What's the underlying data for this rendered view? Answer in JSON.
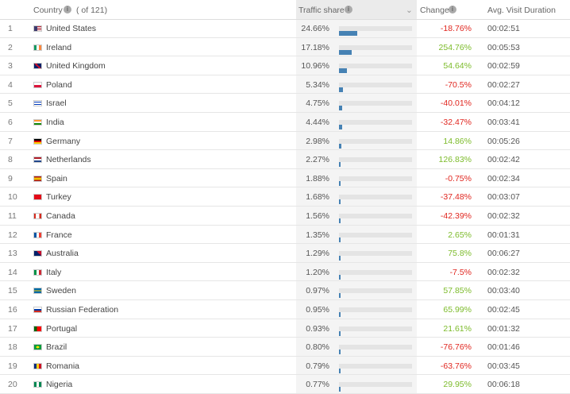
{
  "header": {
    "country": "Country",
    "country_count": "( of 121)",
    "traffic_share": "Traffic share",
    "change": "Change",
    "duration": "Avg. Visit Duration"
  },
  "table": {
    "rows": [
      {
        "rank": "1",
        "country": "United States",
        "traffic_share": {
          "value": 24.66,
          "label": "24.66%"
        },
        "change": "-18.76%",
        "duration": "00:02:51"
      },
      {
        "rank": "2",
        "country": "Ireland",
        "traffic_share": {
          "value": 17.18,
          "label": "17.18%"
        },
        "change": "254.76%",
        "duration": "00:05:53"
      },
      {
        "rank": "3",
        "country": "United Kingdom",
        "traffic_share": {
          "value": 10.96,
          "label": "10.96%"
        },
        "change": "54.64%",
        "duration": "00:02:59"
      },
      {
        "rank": "4",
        "country": "Poland",
        "traffic_share": {
          "value": 5.34,
          "label": "5.34%"
        },
        "change": "-70.5%",
        "duration": "00:02:27"
      },
      {
        "rank": "5",
        "country": "Israel",
        "traffic_share": {
          "value": 4.75,
          "label": "4.75%"
        },
        "change": "-40.01%",
        "duration": "00:04:12"
      },
      {
        "rank": "6",
        "country": "India",
        "traffic_share": {
          "value": 4.44,
          "label": "4.44%"
        },
        "change": "-32.47%",
        "duration": "00:03:41"
      },
      {
        "rank": "7",
        "country": "Germany",
        "traffic_share": {
          "value": 2.98,
          "label": "2.98%"
        },
        "change": "14.86%",
        "duration": "00:05:26"
      },
      {
        "rank": "8",
        "country": "Netherlands",
        "traffic_share": {
          "value": 2.27,
          "label": "2.27%"
        },
        "change": "126.83%",
        "duration": "00:02:42"
      },
      {
        "rank": "9",
        "country": "Spain",
        "traffic_share": {
          "value": 1.88,
          "label": "1.88%"
        },
        "change": "-0.75%",
        "duration": "00:02:34"
      },
      {
        "rank": "10",
        "country": "Turkey",
        "traffic_share": {
          "value": 1.68,
          "label": "1.68%"
        },
        "change": "-37.48%",
        "duration": "00:03:07"
      },
      {
        "rank": "11",
        "country": "Canada",
        "traffic_share": {
          "value": 1.56,
          "label": "1.56%"
        },
        "change": "-42.39%",
        "duration": "00:02:32"
      },
      {
        "rank": "12",
        "country": "France",
        "traffic_share": {
          "value": 1.35,
          "label": "1.35%"
        },
        "change": "2.65%",
        "duration": "00:01:31"
      },
      {
        "rank": "13",
        "country": "Australia",
        "traffic_share": {
          "value": 1.29,
          "label": "1.29%"
        },
        "change": "75.8%",
        "duration": "00:06:27"
      },
      {
        "rank": "14",
        "country": "Italy",
        "traffic_share": {
          "value": 1.2,
          "label": "1.20%"
        },
        "change": "-7.5%",
        "duration": "00:02:32"
      },
      {
        "rank": "15",
        "country": "Sweden",
        "traffic_share": {
          "value": 0.97,
          "label": "0.97%"
        },
        "change": "57.85%",
        "duration": "00:03:40"
      },
      {
        "rank": "16",
        "country": "Russian Federation",
        "traffic_share": {
          "value": 0.95,
          "label": "0.95%"
        },
        "change": "65.99%",
        "duration": "00:02:45"
      },
      {
        "rank": "17",
        "country": "Portugal",
        "traffic_share": {
          "value": 0.93,
          "label": "0.93%"
        },
        "change": "21.61%",
        "duration": "00:01:32"
      },
      {
        "rank": "18",
        "country": "Brazil",
        "traffic_share": {
          "value": 0.8,
          "label": "0.80%"
        },
        "change": "-76.76%",
        "duration": "00:01:46"
      },
      {
        "rank": "19",
        "country": "Romania",
        "traffic_share": {
          "value": 0.79,
          "label": "0.79%"
        },
        "change": "-63.76%",
        "duration": "00:03:45"
      },
      {
        "rank": "20",
        "country": "Nigeria",
        "traffic_share": {
          "value": 0.77,
          "label": "0.77%"
        },
        "change": "29.95%",
        "duration": "00:06:18"
      }
    ]
  }
}
